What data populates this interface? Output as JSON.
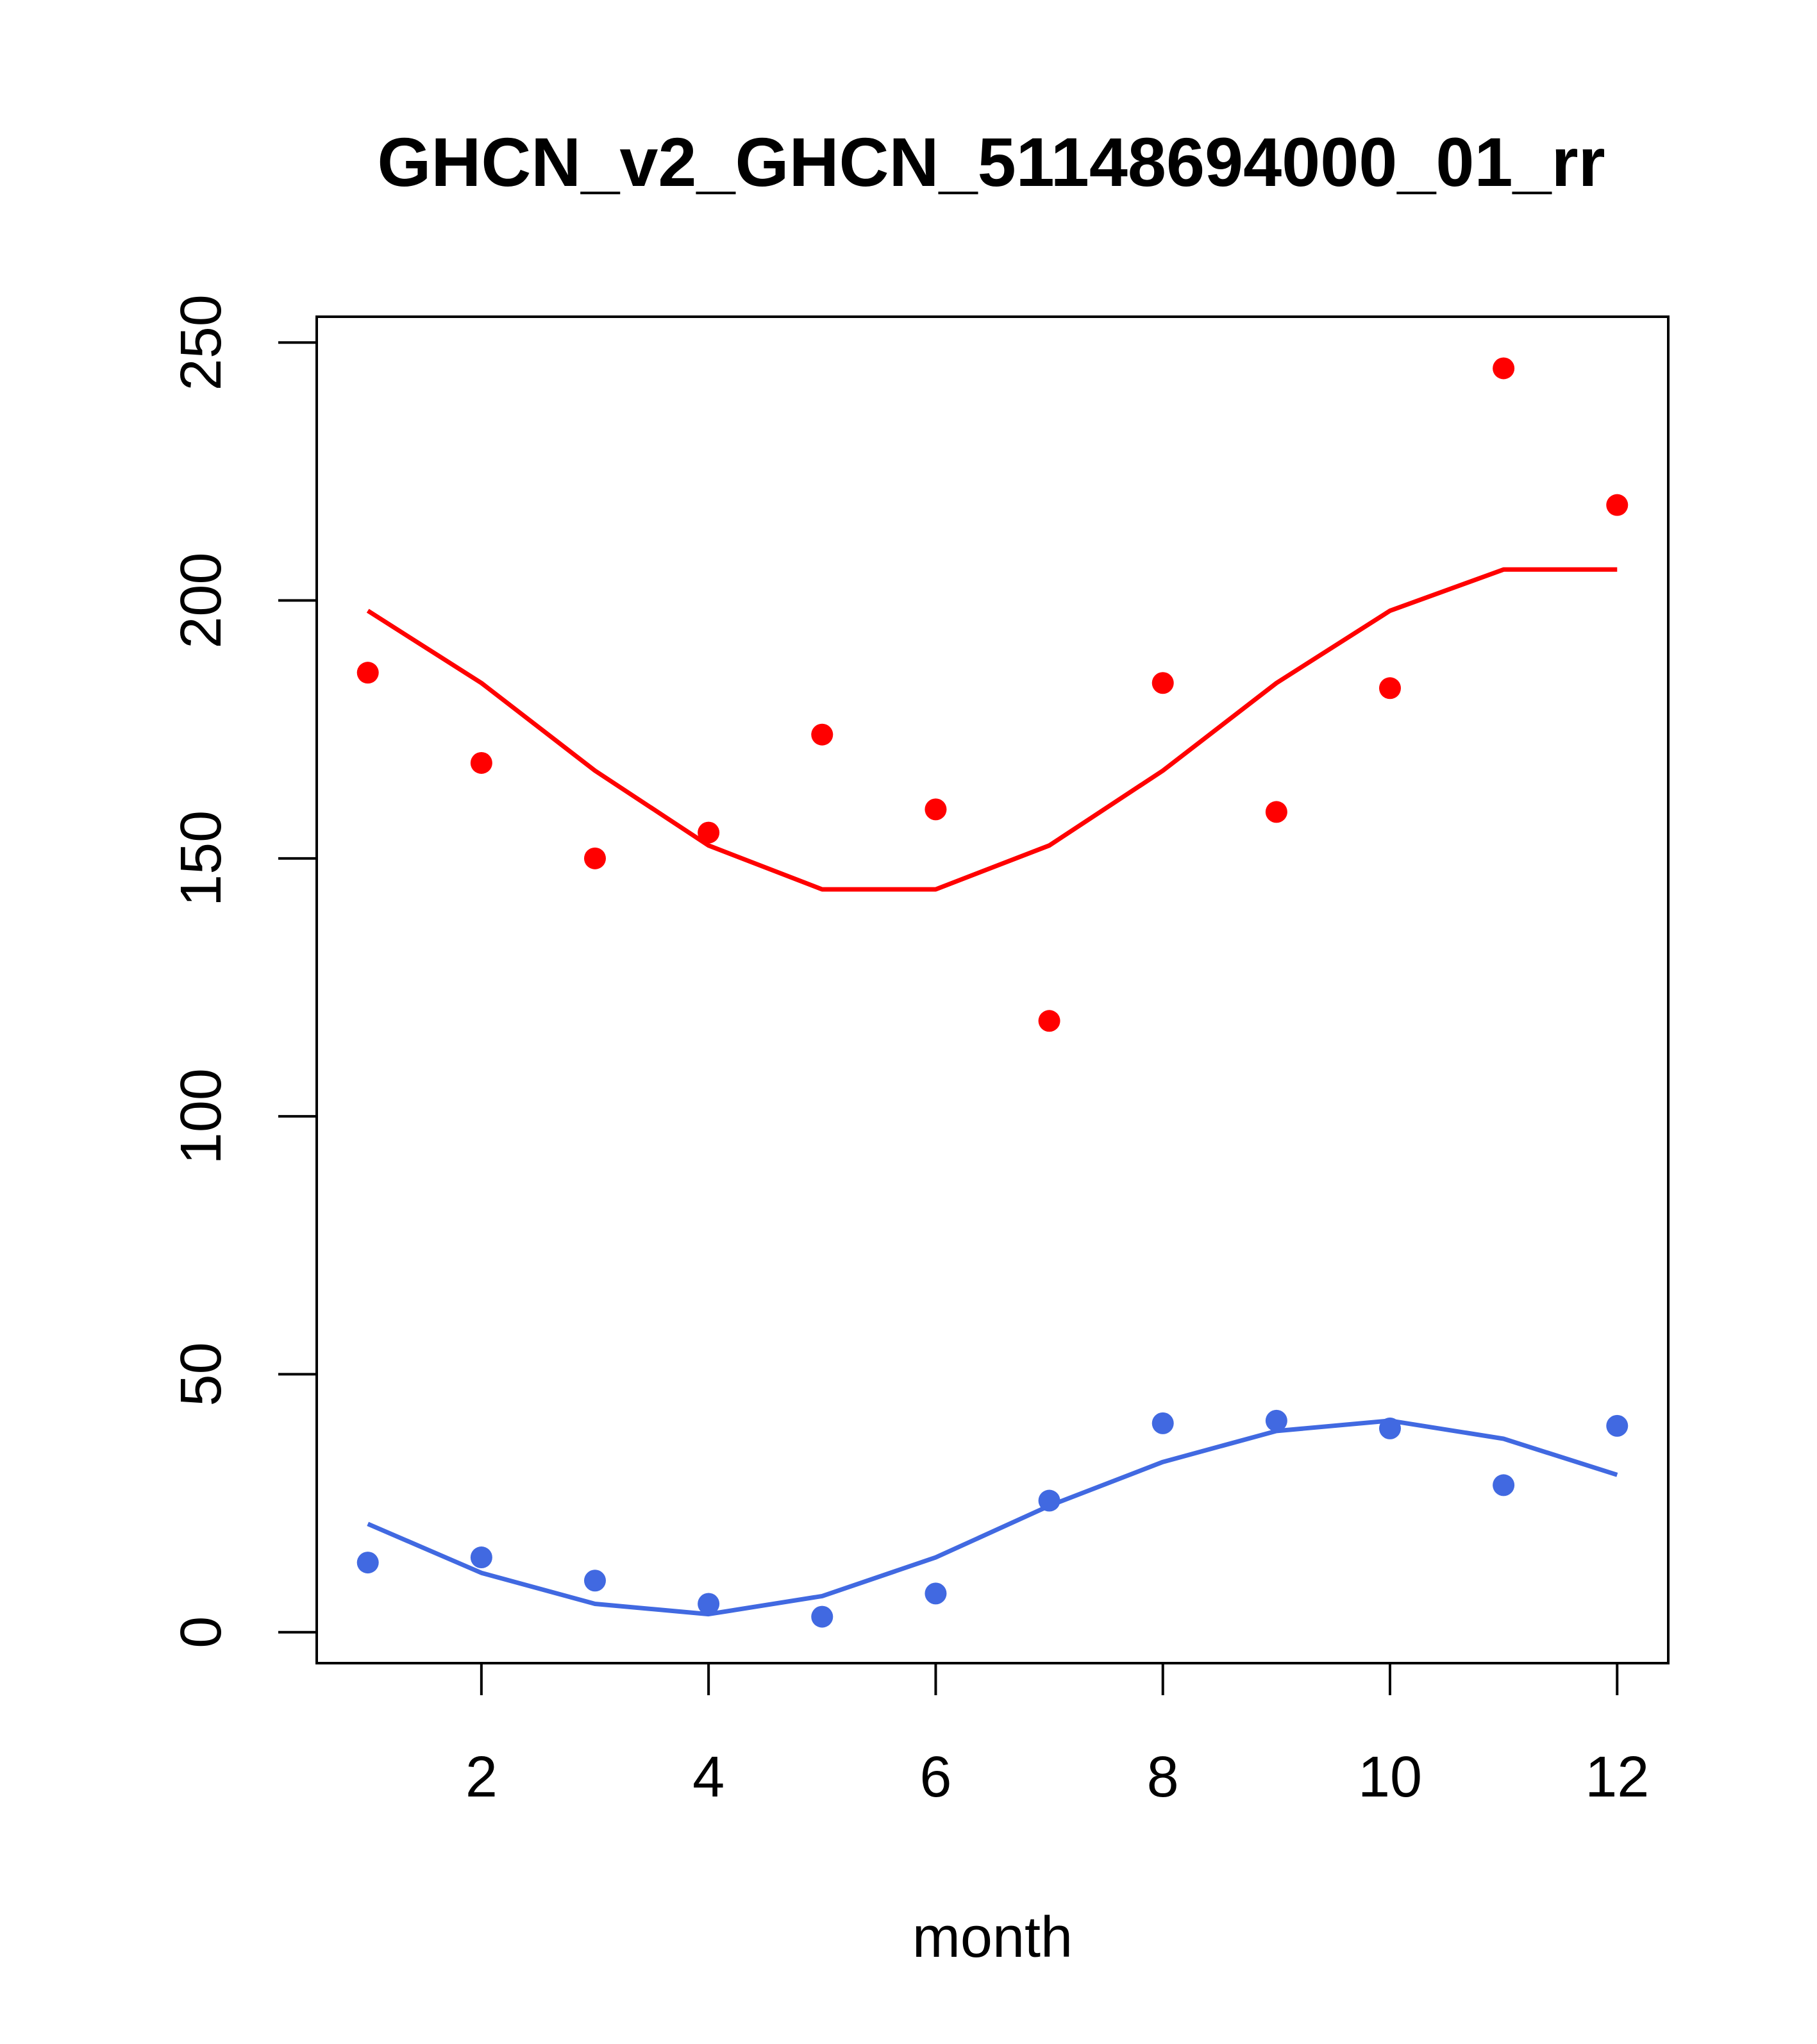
{
  "chart_data": {
    "type": "scatter",
    "title": "GHCN_v2_GHCN_51148694000_01_rr",
    "xlabel": "month",
    "ylabel": "",
    "xlim": [
      0.55,
      12.45
    ],
    "ylim": [
      -6,
      255
    ],
    "x_ticks": [
      2,
      4,
      6,
      8,
      10,
      12
    ],
    "y_ticks": [
      0,
      50,
      100,
      150,
      200,
      250
    ],
    "grid": false,
    "legend": "none",
    "series": [
      {
        "color": "#ff0000",
        "points": [
          {
            "x": 1,
            "y": 186
          },
          {
            "x": 2,
            "y": 168.5
          },
          {
            "x": 3,
            "y": 150
          },
          {
            "x": 4,
            "y": 155
          },
          {
            "x": 5,
            "y": 174
          },
          {
            "x": 6,
            "y": 159.5
          },
          {
            "x": 7,
            "y": 118.5
          },
          {
            "x": 8,
            "y": 184
          },
          {
            "x": 9,
            "y": 159
          },
          {
            "x": 10,
            "y": 183
          },
          {
            "x": 11,
            "y": 245
          },
          {
            "x": 12,
            "y": 218.5
          }
        ],
        "line": [
          {
            "x": 1,
            "y": 198
          },
          {
            "x": 2,
            "y": 184
          },
          {
            "x": 3,
            "y": 167
          },
          {
            "x": 4,
            "y": 152.5
          },
          {
            "x": 5,
            "y": 144
          },
          {
            "x": 6,
            "y": 144
          },
          {
            "x": 7,
            "y": 152.5
          },
          {
            "x": 8,
            "y": 167
          },
          {
            "x": 9,
            "y": 184
          },
          {
            "x": 10,
            "y": 198
          },
          {
            "x": 11,
            "y": 206
          },
          {
            "x": 12,
            "y": 206
          }
        ]
      },
      {
        "color": "#4169e1",
        "points": [
          {
            "x": 1,
            "y": 13.5
          },
          {
            "x": 2,
            "y": 14.5
          },
          {
            "x": 3,
            "y": 10
          },
          {
            "x": 4,
            "y": 5.5
          },
          {
            "x": 5,
            "y": 3
          },
          {
            "x": 6,
            "y": 7.5
          },
          {
            "x": 7,
            "y": 25.5
          },
          {
            "x": 8,
            "y": 40.5
          },
          {
            "x": 9,
            "y": 41
          },
          {
            "x": 10,
            "y": 39.5
          },
          {
            "x": 11,
            "y": 28.5
          },
          {
            "x": 12,
            "y": 40
          }
        ],
        "line": [
          {
            "x": 1,
            "y": 21
          },
          {
            "x": 2,
            "y": 11.5
          },
          {
            "x": 3,
            "y": 5.5
          },
          {
            "x": 4,
            "y": 3.5
          },
          {
            "x": 5,
            "y": 7
          },
          {
            "x": 6,
            "y": 14.5
          },
          {
            "x": 7,
            "y": 24.5
          },
          {
            "x": 8,
            "y": 33
          },
          {
            "x": 9,
            "y": 39
          },
          {
            "x": 10,
            "y": 41
          },
          {
            "x": 11,
            "y": 37.5
          },
          {
            "x": 12,
            "y": 30.5
          }
        ]
      }
    ]
  }
}
